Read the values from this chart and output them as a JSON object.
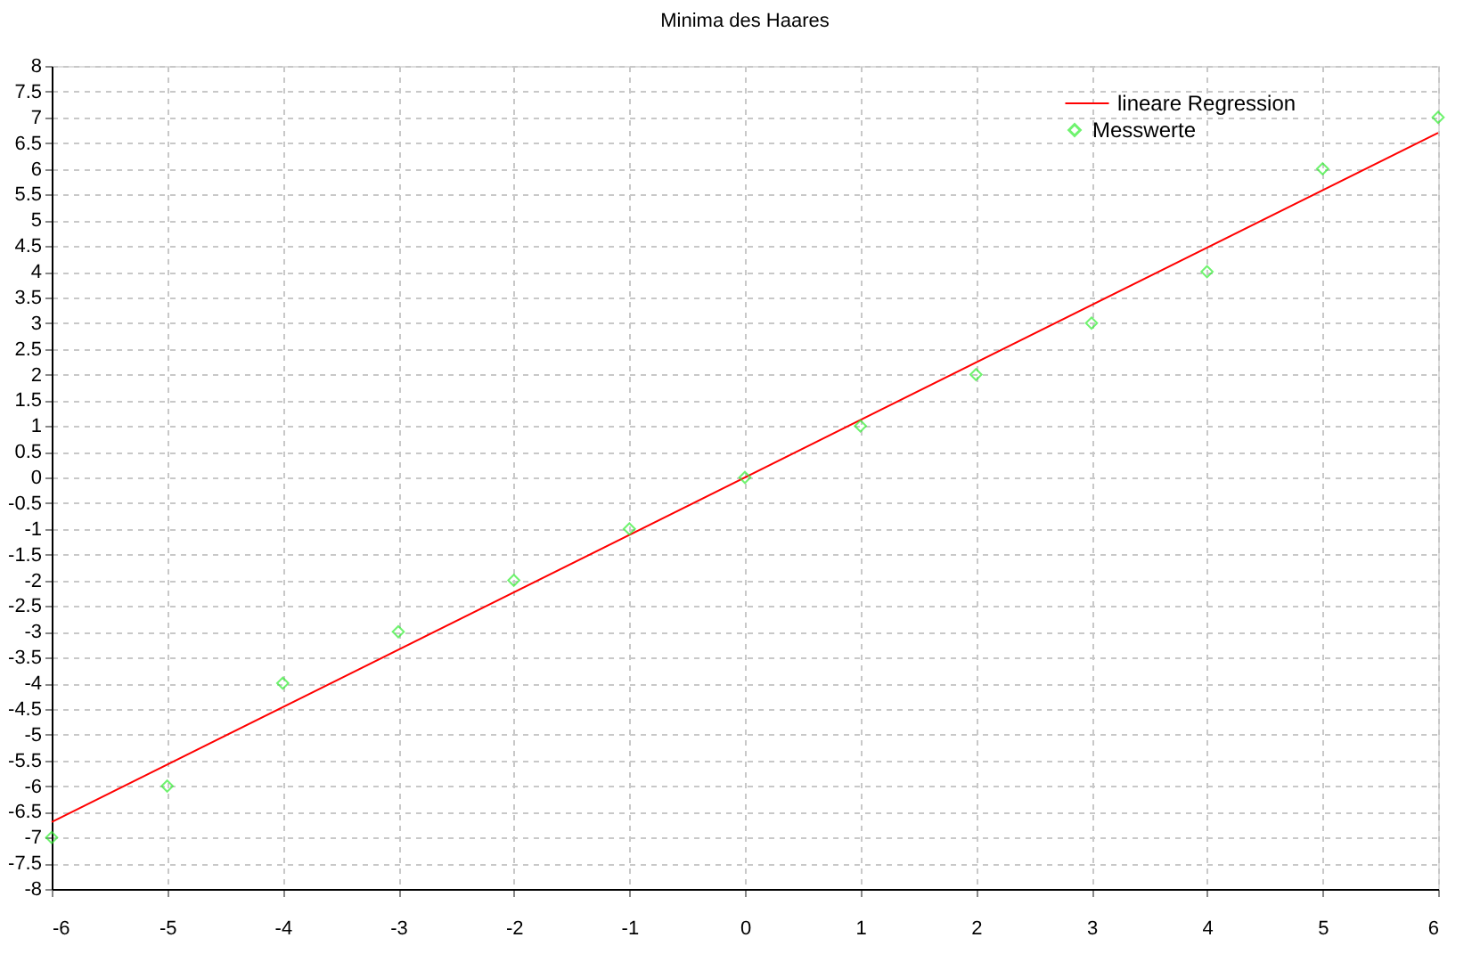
{
  "chart_data": {
    "type": "scatter",
    "title": "Minima des Haares",
    "x": [
      -6,
      -5,
      -4,
      -3,
      -2,
      -1,
      0,
      1,
      2,
      3,
      4,
      5,
      6
    ],
    "series": [
      {
        "name": "lineare Regression",
        "type": "line",
        "color": "#ff0000",
        "x": [
          -6,
          6
        ],
        "values": [
          -6.7,
          6.7
        ]
      },
      {
        "name": "Messwerte",
        "marker": "diamond",
        "color": "#33ee33",
        "values": [
          -7,
          -6,
          -4,
          -3,
          -2,
          -1,
          0,
          1,
          2,
          3,
          4,
          6,
          7
        ]
      }
    ],
    "xlim": [
      -6,
      6
    ],
    "xticks": [
      -6,
      -5,
      -4,
      -3,
      -2,
      -1,
      0,
      1,
      2,
      3,
      4,
      5,
      6
    ],
    "ylim": [
      -8,
      8
    ],
    "yticks": [
      -8,
      -7.5,
      -7,
      -6.5,
      -6,
      -5.5,
      -5,
      -4.5,
      -4,
      -3.5,
      -3,
      -2.5,
      -2,
      -1.5,
      -1,
      -0.5,
      0,
      0.5,
      1,
      1.5,
      2,
      2.5,
      3,
      3.5,
      4,
      4.5,
      5,
      5.5,
      6,
      6.5,
      7,
      7.5,
      8
    ],
    "grid": true,
    "legend": "top right"
  }
}
